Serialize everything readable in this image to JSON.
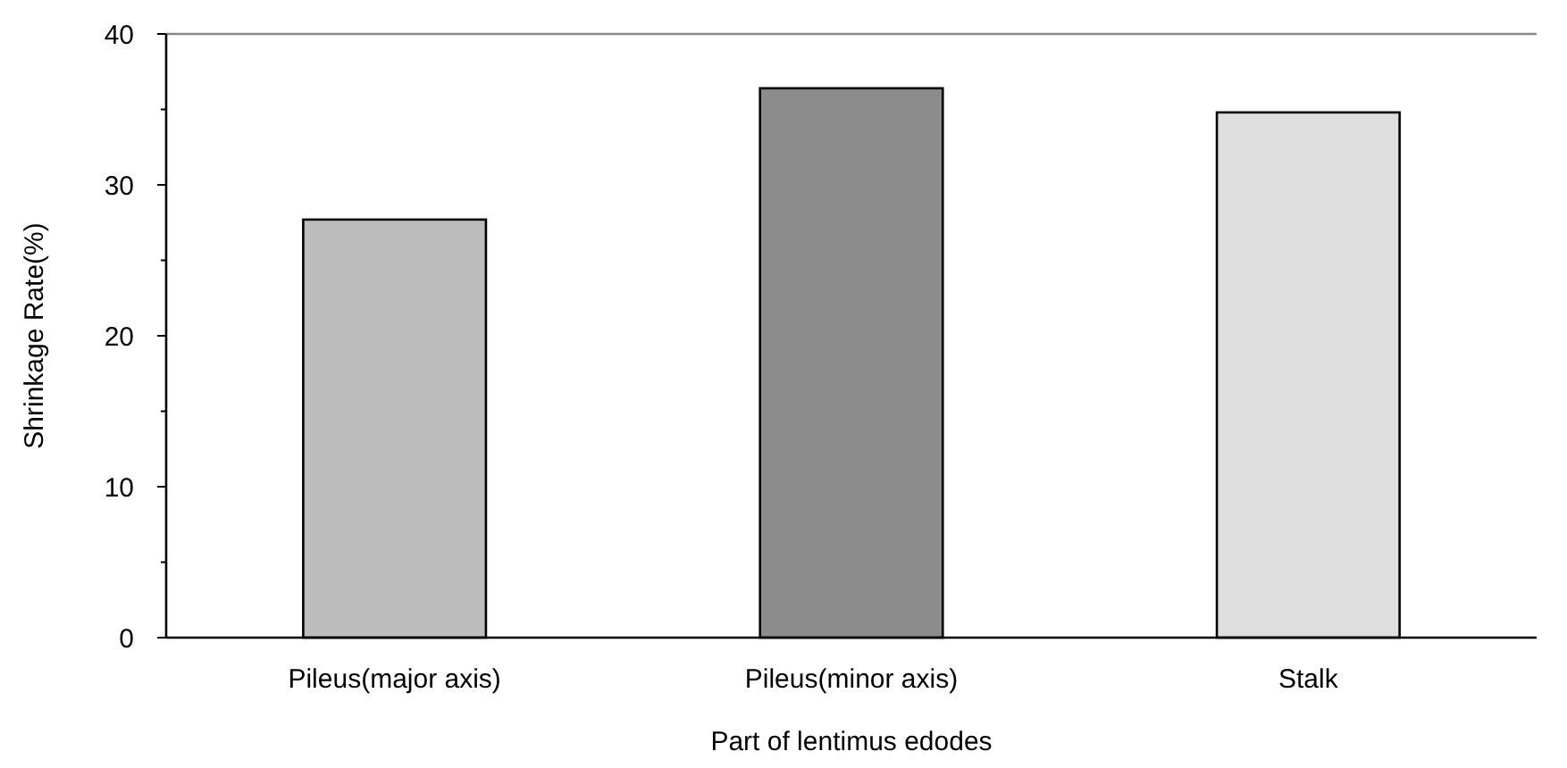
{
  "chart_data": {
    "type": "bar",
    "xlabel": "Part of lentimus edodes",
    "ylabel": "Shrinkage Rate(%)",
    "categories": [
      "Pileus(major axis)",
      "Pileus(minor axis)",
      "Stalk"
    ],
    "values": [
      27.7,
      36.4,
      34.8
    ],
    "colors": [
      "#bcbcbc",
      "#8c8c8c",
      "#dedede"
    ],
    "ylim": [
      0,
      40
    ],
    "yticks": [
      0,
      {
        "value": 5,
        "label": null
      },
      10,
      {
        "value": 15,
        "label": null
      },
      20,
      {
        "value": 25,
        "label": null
      },
      30,
      {
        "value": 35,
        "label": null
      },
      40
    ]
  }
}
